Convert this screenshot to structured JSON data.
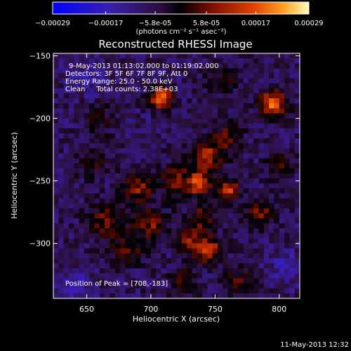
{
  "chart_data": {
    "type": "heatmap",
    "title": "Reconstructed RHESSI Image",
    "xlabel": "Heliocentric X (arcsec)",
    "ylabel": "Heliocentric Y (arcsec)",
    "xlim": [
      624,
      816
    ],
    "ylim": [
      -344,
      -148
    ],
    "xticks": [
      650,
      700,
      750,
      800
    ],
    "yticks": [
      -150,
      -200,
      -250,
      -300
    ],
    "xtick_labels": [
      "650",
      "700",
      "750",
      "800"
    ],
    "ytick_labels": [
      "-150",
      "-200",
      "-250",
      "-300"
    ],
    "colorbar": {
      "min": -0.00029,
      "max": 0.00029,
      "ticks": [
        -0.00029,
        -0.00017,
        -5.8e-05,
        5.8e-05,
        0.00017,
        0.00029
      ],
      "tick_labels": [
        "-0.00029",
        "-0.00017",
        "-5.8e-05",
        "5.8e-05",
        "0.00017",
        "0.00029"
      ],
      "unit_label": "(photons cm⁻² s⁻¹ asec⁻²)"
    },
    "annotations": [
      "9-May-2013 01:13:02.000 to 01:19:02.000",
      "Detectors: 3F 5F 6F 7F 8F 9F, Att 0",
      "Energy Range: 25.0 - 50.0 keV",
      "Clean     Total counts: 2.38E+03",
      "Position of Peak = [708,-183]"
    ],
    "peak": {
      "x": 708,
      "y": -183
    },
    "sources": [
      {
        "x": 708,
        "y": -183,
        "amp": 1.0,
        "sigma": 6
      },
      {
        "x": 795,
        "y": -188,
        "amp": 0.9,
        "sigma": 7
      },
      {
        "x": 744,
        "y": -230,
        "amp": 0.6,
        "sigma": 9
      },
      {
        "x": 738,
        "y": -252,
        "amp": 0.85,
        "sigma": 6
      },
      {
        "x": 760,
        "y": -258,
        "amp": 0.75,
        "sigma": 6
      },
      {
        "x": 690,
        "y": -255,
        "amp": 0.6,
        "sigma": 8
      },
      {
        "x": 720,
        "y": -250,
        "amp": 0.5,
        "sigma": 9
      },
      {
        "x": 665,
        "y": -282,
        "amp": 0.45,
        "sigma": 10
      },
      {
        "x": 700,
        "y": -285,
        "amp": 0.5,
        "sigma": 9
      },
      {
        "x": 745,
        "y": -305,
        "amp": 0.7,
        "sigma": 7
      },
      {
        "x": 730,
        "y": -300,
        "amp": 0.55,
        "sigma": 7
      },
      {
        "x": 682,
        "y": -305,
        "amp": 0.4,
        "sigma": 9
      },
      {
        "x": 785,
        "y": -275,
        "amp": 0.45,
        "sigma": 8
      },
      {
        "x": 800,
        "y": -238,
        "amp": 0.35,
        "sigma": 8
      },
      {
        "x": 760,
        "y": -215,
        "amp": 0.4,
        "sigma": 8
      },
      {
        "x": 725,
        "y": -330,
        "amp": 0.35,
        "sigma": 8
      },
      {
        "x": 770,
        "y": -330,
        "amp": 0.35,
        "sigma": 9
      },
      {
        "x": 655,
        "y": -235,
        "amp": 0.3,
        "sigma": 9
      },
      {
        "x": 660,
        "y": -200,
        "amp": 0.25,
        "sigma": 9
      },
      {
        "x": 755,
        "y": -170,
        "amp": 0.3,
        "sigma": 9
      },
      {
        "x": 740,
        "y": -280,
        "amp": 0.45,
        "sigma": 8
      },
      {
        "x": 650,
        "y": -170,
        "amp": -0.2,
        "sigma": 10
      },
      {
        "x": 640,
        "y": -335,
        "amp": -0.25,
        "sigma": 10
      },
      {
        "x": 805,
        "y": -320,
        "amp": -0.2,
        "sigma": 10
      }
    ]
  },
  "footer": {
    "date": "11-May-2013 12:32"
  }
}
